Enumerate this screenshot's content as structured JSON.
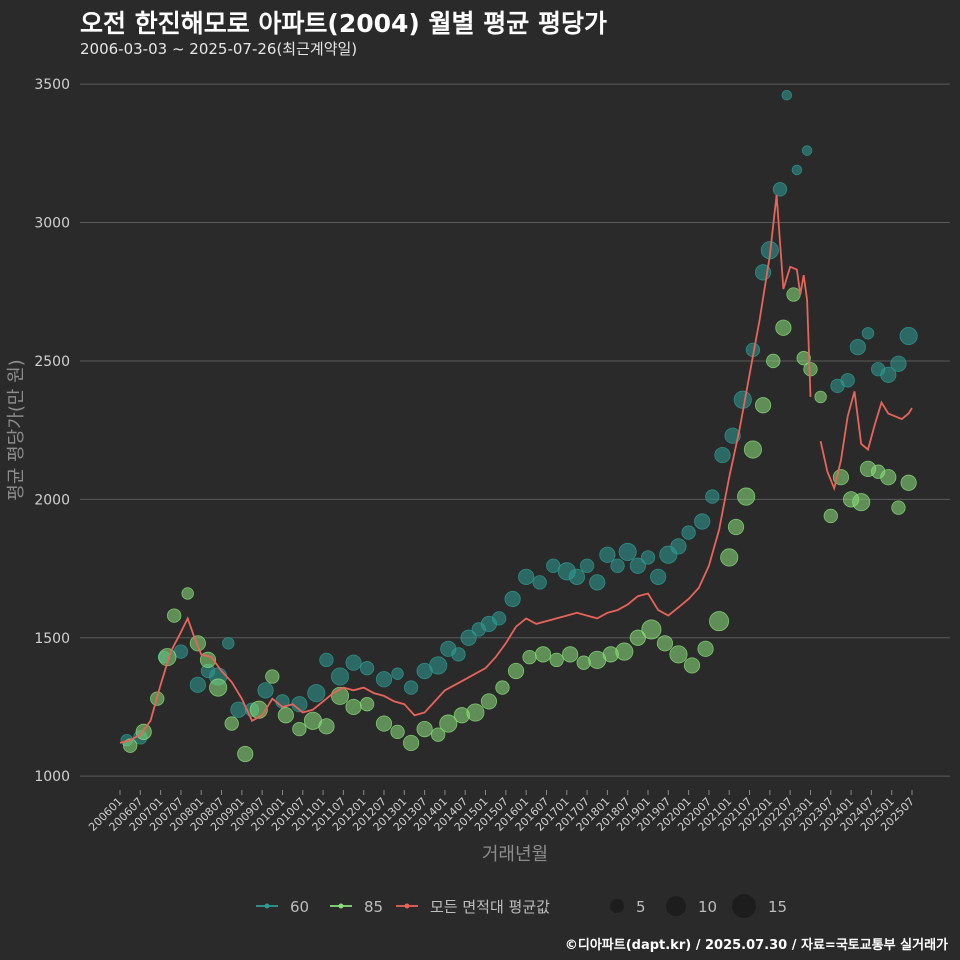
{
  "title": "오전 한진해모로 아파트(2004) 월별 평균 평당가",
  "subtitle": "2006-03-03 ~ 2025-07-26(최근계약일)",
  "credit": "©디아파트(dapt.kr) / 2025.07.30 / 자료=국토교통부 실거래가",
  "colors": {
    "background": "#2a2a2b",
    "grid": "#5a5a5a",
    "s60": "#2e9c93",
    "s85": "#8be07a",
    "avg": "#e8645a"
  },
  "chart_data": {
    "type": "scatter",
    "xlabel": "거래년월",
    "ylabel": "평균 평당가(만 원)",
    "x_range": [
      "2006-01",
      "2025-07"
    ],
    "ylim": [
      950,
      3580
    ],
    "yticks": [
      1000,
      1500,
      2000,
      2500,
      3000,
      3500
    ],
    "xticks": [
      "200601",
      "200607",
      "200701",
      "200707",
      "200801",
      "200807",
      "200901",
      "200907",
      "201001",
      "201007",
      "201101",
      "201107",
      "201201",
      "201207",
      "201301",
      "201307",
      "201401",
      "201407",
      "201501",
      "201507",
      "201601",
      "201607",
      "201701",
      "201707",
      "201801",
      "201807",
      "201901",
      "201907",
      "202001",
      "202007",
      "202101",
      "202107",
      "202201",
      "202207",
      "202301",
      "202307",
      "202401",
      "202407",
      "202501",
      "202507"
    ],
    "legend": {
      "series_labels": [
        "60",
        "85",
        "모든 면적대 평균값"
      ],
      "size_labels": [
        "5",
        "10",
        "15"
      ]
    },
    "series": [
      {
        "name": "60",
        "points": [
          [
            "2006-03",
            1130,
            4
          ],
          [
            "2006-07",
            1140,
            5
          ],
          [
            "2007-02",
            1430,
            4
          ],
          [
            "2007-07",
            1450,
            5
          ],
          [
            "2007-12",
            1330,
            6
          ],
          [
            "2008-03",
            1380,
            5
          ],
          [
            "2008-06",
            1360,
            7
          ],
          [
            "2008-09",
            1480,
            4
          ],
          [
            "2008-12",
            1240,
            6
          ],
          [
            "2009-04",
            1240,
            5
          ],
          [
            "2009-08",
            1310,
            6
          ],
          [
            "2010-01",
            1270,
            5
          ],
          [
            "2010-06",
            1260,
            6
          ],
          [
            "2010-11",
            1300,
            7
          ],
          [
            "2011-02",
            1420,
            5
          ],
          [
            "2011-06",
            1360,
            7
          ],
          [
            "2011-10",
            1410,
            6
          ],
          [
            "2012-02",
            1390,
            5
          ],
          [
            "2012-07",
            1350,
            6
          ],
          [
            "2012-11",
            1370,
            4
          ],
          [
            "2013-03",
            1320,
            5
          ],
          [
            "2013-07",
            1380,
            6
          ],
          [
            "2013-11",
            1400,
            7
          ],
          [
            "2014-02",
            1460,
            6
          ],
          [
            "2014-05",
            1440,
            5
          ],
          [
            "2014-08",
            1500,
            6
          ],
          [
            "2014-11",
            1530,
            5
          ],
          [
            "2015-02",
            1550,
            6
          ],
          [
            "2015-05",
            1570,
            5
          ],
          [
            "2015-09",
            1640,
            6
          ],
          [
            "2016-01",
            1720,
            6
          ],
          [
            "2016-05",
            1700,
            5
          ],
          [
            "2016-09",
            1760,
            5
          ],
          [
            "2017-01",
            1740,
            7
          ],
          [
            "2017-04",
            1720,
            6
          ],
          [
            "2017-07",
            1760,
            5
          ],
          [
            "2017-10",
            1700,
            6
          ],
          [
            "2018-01",
            1800,
            6
          ],
          [
            "2018-04",
            1760,
            5
          ],
          [
            "2018-07",
            1810,
            7
          ],
          [
            "2018-10",
            1760,
            6
          ],
          [
            "2019-01",
            1790,
            5
          ],
          [
            "2019-04",
            1720,
            6
          ],
          [
            "2019-07",
            1800,
            7
          ],
          [
            "2019-10",
            1830,
            6
          ],
          [
            "2020-01",
            1880,
            5
          ],
          [
            "2020-05",
            1920,
            6
          ],
          [
            "2020-08",
            2010,
            5
          ],
          [
            "2020-11",
            2160,
            6
          ],
          [
            "2021-02",
            2230,
            6
          ],
          [
            "2021-05",
            2360,
            7
          ],
          [
            "2021-08",
            2540,
            5
          ],
          [
            "2021-11",
            2820,
            6
          ],
          [
            "2022-01",
            2900,
            7
          ],
          [
            "2022-04",
            3120,
            5
          ],
          [
            "2022-06",
            3460,
            3
          ],
          [
            "2022-09",
            3190,
            3
          ],
          [
            "2022-12",
            3260,
            3
          ],
          [
            "2023-09",
            2410,
            5
          ],
          [
            "2023-12",
            2430,
            5
          ],
          [
            "2024-03",
            2550,
            6
          ],
          [
            "2024-06",
            2600,
            4
          ],
          [
            "2024-09",
            2470,
            5
          ],
          [
            "2024-12",
            2450,
            6
          ],
          [
            "2025-03",
            2490,
            6
          ],
          [
            "2025-06",
            2590,
            7
          ]
        ]
      },
      {
        "name": "85",
        "points": [
          [
            "2006-04",
            1110,
            5
          ],
          [
            "2006-08",
            1160,
            6
          ],
          [
            "2006-12",
            1280,
            5
          ],
          [
            "2007-03",
            1430,
            7
          ],
          [
            "2007-05",
            1580,
            5
          ],
          [
            "2007-09",
            1660,
            4
          ],
          [
            "2007-12",
            1480,
            6
          ],
          [
            "2008-03",
            1420,
            6
          ],
          [
            "2008-06",
            1320,
            7
          ],
          [
            "2008-10",
            1190,
            5
          ],
          [
            "2009-02",
            1080,
            6
          ],
          [
            "2009-06",
            1240,
            7
          ],
          [
            "2009-10",
            1360,
            5
          ],
          [
            "2010-02",
            1220,
            6
          ],
          [
            "2010-06",
            1170,
            5
          ],
          [
            "2010-10",
            1200,
            7
          ],
          [
            "2011-02",
            1180,
            6
          ],
          [
            "2011-06",
            1290,
            7
          ],
          [
            "2011-10",
            1250,
            6
          ],
          [
            "2012-02",
            1260,
            5
          ],
          [
            "2012-07",
            1190,
            6
          ],
          [
            "2012-11",
            1160,
            5
          ],
          [
            "2013-03",
            1120,
            6
          ],
          [
            "2013-07",
            1170,
            6
          ],
          [
            "2013-11",
            1150,
            5
          ],
          [
            "2014-02",
            1190,
            7
          ],
          [
            "2014-06",
            1220,
            6
          ],
          [
            "2014-10",
            1230,
            7
          ],
          [
            "2015-02",
            1270,
            6
          ],
          [
            "2015-06",
            1320,
            5
          ],
          [
            "2015-10",
            1380,
            6
          ],
          [
            "2016-02",
            1430,
            5
          ],
          [
            "2016-06",
            1440,
            6
          ],
          [
            "2016-10",
            1420,
            5
          ],
          [
            "2017-02",
            1440,
            6
          ],
          [
            "2017-06",
            1410,
            5
          ],
          [
            "2017-10",
            1420,
            7
          ],
          [
            "2018-02",
            1440,
            6
          ],
          [
            "2018-06",
            1450,
            7
          ],
          [
            "2018-10",
            1500,
            6
          ],
          [
            "2019-02",
            1530,
            8
          ],
          [
            "2019-06",
            1480,
            6
          ],
          [
            "2019-10",
            1440,
            7
          ],
          [
            "2020-02",
            1400,
            6
          ],
          [
            "2020-06",
            1460,
            6
          ],
          [
            "2020-10",
            1560,
            8
          ],
          [
            "2021-01",
            1790,
            7
          ],
          [
            "2021-03",
            1900,
            6
          ],
          [
            "2021-06",
            2010,
            7
          ],
          [
            "2021-08",
            2180,
            7
          ],
          [
            "2021-11",
            2340,
            6
          ],
          [
            "2022-02",
            2500,
            5
          ],
          [
            "2022-05",
            2620,
            6
          ],
          [
            "2022-08",
            2740,
            5
          ],
          [
            "2022-11",
            2510,
            5
          ],
          [
            "2023-01",
            2470,
            5
          ],
          [
            "2023-04",
            2370,
            4
          ],
          [
            "2023-07",
            1940,
            5
          ],
          [
            "2023-10",
            2080,
            6
          ],
          [
            "2024-01",
            2000,
            6
          ],
          [
            "2024-04",
            1990,
            7
          ],
          [
            "2024-06",
            2110,
            6
          ],
          [
            "2024-09",
            2100,
            5
          ],
          [
            "2024-12",
            2080,
            6
          ],
          [
            "2025-03",
            1970,
            5
          ],
          [
            "2025-06",
            2060,
            6
          ]
        ]
      },
      {
        "name": "모든 면적대 평균값",
        "values": [
          [
            "2006-01",
            1120
          ],
          [
            "2006-04",
            1130
          ],
          [
            "2006-07",
            1150
          ],
          [
            "2006-10",
            1200
          ],
          [
            "2007-01",
            1330
          ],
          [
            "2007-04",
            1450
          ],
          [
            "2007-07",
            1520
          ],
          [
            "2007-09",
            1570
          ],
          [
            "2007-11",
            1500
          ],
          [
            "2008-01",
            1440
          ],
          [
            "2008-04",
            1430
          ],
          [
            "2008-07",
            1380
          ],
          [
            "2008-10",
            1340
          ],
          [
            "2009-01",
            1280
          ],
          [
            "2009-04",
            1200
          ],
          [
            "2009-07",
            1220
          ],
          [
            "2009-10",
            1280
          ],
          [
            "2010-01",
            1250
          ],
          [
            "2010-04",
            1260
          ],
          [
            "2010-07",
            1230
          ],
          [
            "2010-10",
            1240
          ],
          [
            "2011-01",
            1270
          ],
          [
            "2011-04",
            1300
          ],
          [
            "2011-07",
            1320
          ],
          [
            "2011-10",
            1310
          ],
          [
            "2012-01",
            1320
          ],
          [
            "2012-04",
            1300
          ],
          [
            "2012-07",
            1290
          ],
          [
            "2012-10",
            1270
          ],
          [
            "2013-01",
            1260
          ],
          [
            "2013-04",
            1220
          ],
          [
            "2013-07",
            1230
          ],
          [
            "2013-10",
            1270
          ],
          [
            "2014-01",
            1310
          ],
          [
            "2014-04",
            1330
          ],
          [
            "2014-07",
            1350
          ],
          [
            "2014-10",
            1370
          ],
          [
            "2015-01",
            1390
          ],
          [
            "2015-04",
            1430
          ],
          [
            "2015-07",
            1480
          ],
          [
            "2015-10",
            1540
          ],
          [
            "2016-01",
            1570
          ],
          [
            "2016-04",
            1550
          ],
          [
            "2016-07",
            1560
          ],
          [
            "2016-10",
            1570
          ],
          [
            "2017-01",
            1580
          ],
          [
            "2017-04",
            1590
          ],
          [
            "2017-07",
            1580
          ],
          [
            "2017-10",
            1570
          ],
          [
            "2018-01",
            1590
          ],
          [
            "2018-04",
            1600
          ],
          [
            "2018-07",
            1620
          ],
          [
            "2018-10",
            1650
          ],
          [
            "2019-01",
            1660
          ],
          [
            "2019-04",
            1600
          ],
          [
            "2019-07",
            1580
          ],
          [
            "2019-10",
            1610
          ],
          [
            "2020-01",
            1640
          ],
          [
            "2020-04",
            1680
          ],
          [
            "2020-07",
            1760
          ],
          [
            "2020-10",
            1890
          ],
          [
            "2021-01",
            2080
          ],
          [
            "2021-04",
            2250
          ],
          [
            "2021-07",
            2450
          ],
          [
            "2021-10",
            2650
          ],
          [
            "2022-01",
            2880
          ],
          [
            "2022-03",
            3100
          ],
          [
            "2022-05",
            2760
          ],
          [
            "2022-07",
            2840
          ],
          [
            "2022-09",
            2830
          ],
          [
            "2022-10",
            2740
          ],
          [
            "2022-11",
            2810
          ],
          [
            "2022-12",
            2720
          ],
          [
            "2023-01",
            2370
          ],
          [
            "2023-03",
            null
          ],
          [
            "2023-04",
            2210
          ],
          [
            "2023-06",
            2100
          ],
          [
            "2023-08",
            2040
          ],
          [
            "2023-10",
            2140
          ],
          [
            "2023-12",
            2300
          ],
          [
            "2024-02",
            2390
          ],
          [
            "2024-04",
            2200
          ],
          [
            "2024-06",
            2180
          ],
          [
            "2024-08",
            2270
          ],
          [
            "2024-10",
            2350
          ],
          [
            "2024-12",
            2310
          ],
          [
            "2025-02",
            2300
          ],
          [
            "2025-04",
            2290
          ],
          [
            "2025-06",
            2310
          ],
          [
            "2025-07",
            2330
          ]
        ]
      }
    ]
  }
}
